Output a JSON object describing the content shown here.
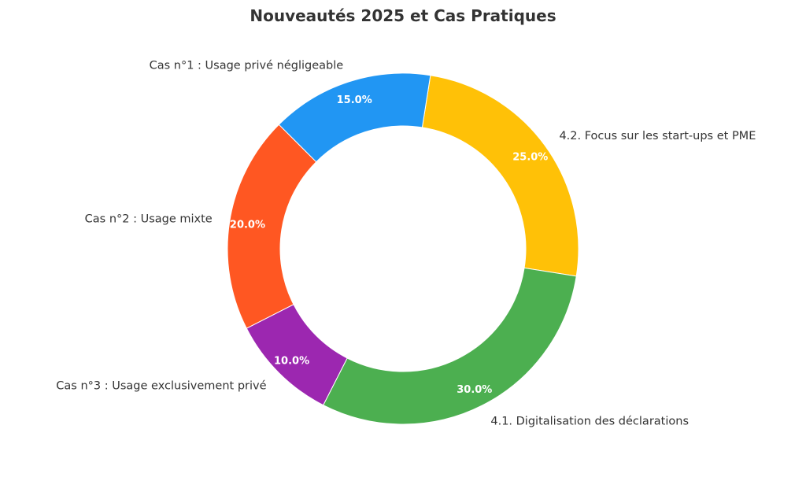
{
  "chart_data": {
    "type": "pie",
    "title": "Nouveautés 2025 et Cas Pratiques",
    "donut": true,
    "start_angle_deg": -9,
    "direction": "counterclockwise",
    "slices": [
      {
        "label": "4.2. Focus sur les start-ups et PME",
        "value": 25.0,
        "pct_label": "25.0%",
        "color": "#FFC107"
      },
      {
        "label": "Cas n°1 : Usage privé négligeable",
        "value": 15.0,
        "pct_label": "15.0%",
        "color": "#2196F3"
      },
      {
        "label": "Cas n°2 : Usage mixte",
        "value": 20.0,
        "pct_label": "20.0%",
        "color": "#FF5722"
      },
      {
        "label": "Cas n°3 : Usage exclusivement privé",
        "value": 10.0,
        "pct_label": "10.0%",
        "color": "#9C27B0"
      },
      {
        "label": "4.1. Digitalisation des déclarations",
        "value": 30.0,
        "pct_label": "30.0%",
        "color": "#4CAF50"
      }
    ]
  }
}
